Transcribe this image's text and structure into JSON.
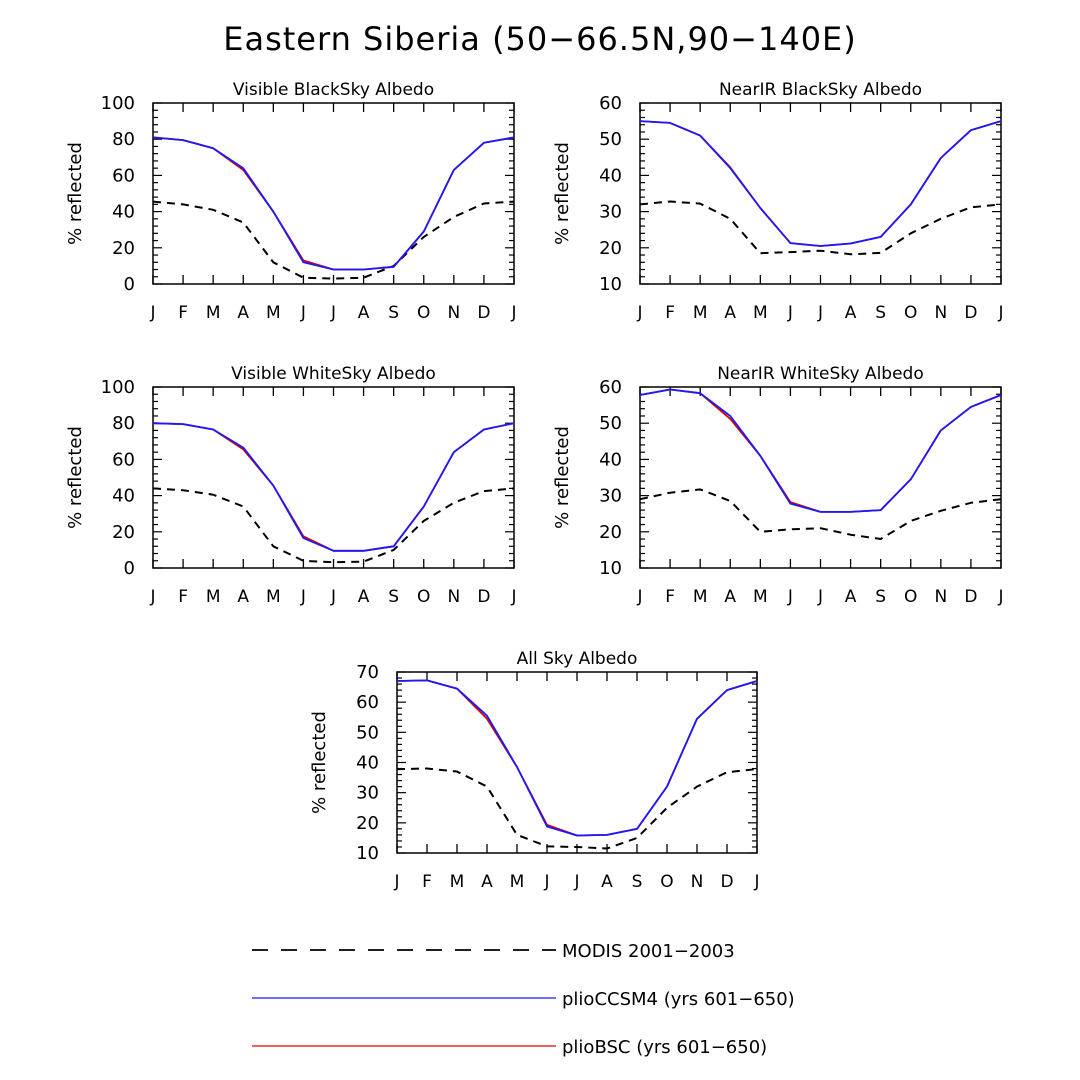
{
  "title": "Eastern Siberia (50−66.5N,90−140E)",
  "colors": {
    "modis": "#000000",
    "ccsm4": "#1a1aff",
    "bsc": "#dd0000"
  },
  "legend": [
    {
      "label": "MODIS 2001−2003",
      "series": "modis"
    },
    {
      "label": "plioCCSM4 (yrs 601−650)",
      "series": "ccsm4"
    },
    {
      "label": "plioBSC (yrs 601−650)",
      "series": "bsc"
    }
  ],
  "chart_data": [
    {
      "type": "line",
      "title": "Visible BlackSky Albedo",
      "xlabel": "",
      "ylabel": "% reflected",
      "categories": [
        "J",
        "F",
        "M",
        "A",
        "M",
        "J",
        "J",
        "A",
        "S",
        "O",
        "N",
        "D",
        "J"
      ],
      "ylim": [
        0,
        100
      ],
      "yticks": [
        0,
        20,
        40,
        60,
        80,
        100
      ],
      "series": [
        {
          "name": "MODIS 2001−2003",
          "key": "modis",
          "values": [
            45.5,
            44,
            41,
            34,
            12,
            3.5,
            3,
            3.5,
            10,
            26,
            37,
            44.5,
            45.5
          ]
        },
        {
          "name": "plioCCSM4 (yrs 601−650)",
          "key": "ccsm4",
          "values": [
            81,
            79.5,
            75,
            64,
            40,
            12,
            8,
            8,
            9.5,
            29,
            63,
            78,
            81
          ]
        },
        {
          "name": "plioBSC (yrs 601−650)",
          "key": "bsc",
          "values": [
            81,
            79.5,
            75,
            63,
            40,
            13,
            8,
            8,
            9.5,
            29,
            63,
            78,
            81
          ]
        }
      ]
    },
    {
      "type": "line",
      "title": "NearIR BlackSky Albedo",
      "xlabel": "",
      "ylabel": "% reflected",
      "categories": [
        "J",
        "F",
        "M",
        "A",
        "M",
        "J",
        "J",
        "A",
        "S",
        "O",
        "N",
        "D",
        "J"
      ],
      "ylim": [
        10,
        60
      ],
      "yticks": [
        10,
        20,
        30,
        40,
        50,
        60
      ],
      "series": [
        {
          "name": "MODIS 2001−2003",
          "key": "modis",
          "values": [
            32,
            32.8,
            32.2,
            28,
            18.5,
            18.8,
            19.2,
            18.2,
            18.6,
            24,
            28,
            31.2,
            32
          ]
        },
        {
          "name": "plioCCSM4 (yrs 601−650)",
          "key": "ccsm4",
          "values": [
            55,
            54.5,
            51,
            42,
            31,
            21.3,
            20.5,
            21.2,
            23,
            32,
            44.8,
            52.5,
            55
          ]
        },
        {
          "name": "plioBSC (yrs 601−650)",
          "key": "bsc",
          "values": [
            55,
            54.5,
            51,
            42.2,
            31,
            21.3,
            20.5,
            21.2,
            23,
            32,
            44.8,
            52.5,
            55
          ]
        }
      ]
    },
    {
      "type": "line",
      "title": "Visible WhiteSky Albedo",
      "xlabel": "",
      "ylabel": "% reflected",
      "categories": [
        "J",
        "F",
        "M",
        "A",
        "M",
        "J",
        "J",
        "A",
        "S",
        "O",
        "N",
        "D",
        "J"
      ],
      "ylim": [
        0,
        100
      ],
      "yticks": [
        0,
        20,
        40,
        60,
        80,
        100
      ],
      "series": [
        {
          "name": "MODIS 2001−2003",
          "key": "modis",
          "values": [
            44,
            43,
            40.5,
            34,
            12,
            4,
            3.2,
            3.5,
            10,
            26,
            36,
            42.5,
            44
          ]
        },
        {
          "name": "plioCCSM4 (yrs 601−650)",
          "key": "ccsm4",
          "values": [
            80,
            79.5,
            76.5,
            66.5,
            45.5,
            16.5,
            9.5,
            9.5,
            12,
            34,
            64,
            76.5,
            80
          ]
        },
        {
          "name": "plioBSC (yrs 601−650)",
          "key": "bsc",
          "values": [
            80,
            79.5,
            76.5,
            65.5,
            45.5,
            17.5,
            9.5,
            9.5,
            12,
            34,
            64,
            76.5,
            80
          ]
        }
      ]
    },
    {
      "type": "line",
      "title": "NearIR WhiteSky Albedo",
      "xlabel": "",
      "ylabel": "% reflected",
      "categories": [
        "J",
        "F",
        "M",
        "A",
        "M",
        "J",
        "J",
        "A",
        "S",
        "O",
        "N",
        "D",
        "J"
      ],
      "ylim": [
        10,
        60
      ],
      "yticks": [
        10,
        20,
        30,
        40,
        50,
        60
      ],
      "series": [
        {
          "name": "MODIS 2001−2003",
          "key": "modis",
          "values": [
            29,
            30.8,
            31.7,
            28.5,
            20,
            20.7,
            21,
            19.2,
            18,
            23,
            25.8,
            28,
            29
          ]
        },
        {
          "name": "plioCCSM4 (yrs 601−650)",
          "key": "ccsm4",
          "values": [
            57.8,
            59.3,
            58.3,
            52,
            41,
            27.8,
            25.5,
            25.5,
            26,
            34.5,
            48,
            54.5,
            57.8
          ]
        },
        {
          "name": "plioBSC (yrs 601−650)",
          "key": "bsc",
          "values": [
            57.8,
            59.3,
            58.3,
            51.2,
            41,
            28.2,
            25.5,
            25.5,
            26,
            34.5,
            48,
            54.5,
            57.8
          ]
        }
      ]
    },
    {
      "type": "line",
      "title": "All Sky Albedo",
      "xlabel": "",
      "ylabel": "% reflected",
      "categories": [
        "J",
        "F",
        "M",
        "A",
        "M",
        "J",
        "J",
        "A",
        "S",
        "O",
        "N",
        "D",
        "J"
      ],
      "ylim": [
        10,
        70
      ],
      "yticks": [
        10,
        20,
        30,
        40,
        50,
        60,
        70
      ],
      "series": [
        {
          "name": "MODIS 2001−2003",
          "key": "modis",
          "values": [
            37.8,
            38,
            37,
            32,
            16,
            12.2,
            12,
            11.5,
            15,
            25,
            32,
            36.8,
            37.8
          ]
        },
        {
          "name": "plioCCSM4 (yrs 601−650)",
          "key": "ccsm4",
          "values": [
            67,
            67.2,
            64.5,
            55.5,
            38.5,
            18.8,
            15.8,
            16,
            18,
            32,
            54.5,
            64,
            67
          ]
        },
        {
          "name": "plioBSC (yrs 601−650)",
          "key": "bsc",
          "values": [
            67,
            67.2,
            64.5,
            54.5,
            38.5,
            19.3,
            15.8,
            16,
            18,
            32,
            54.5,
            64,
            67
          ]
        }
      ]
    }
  ]
}
